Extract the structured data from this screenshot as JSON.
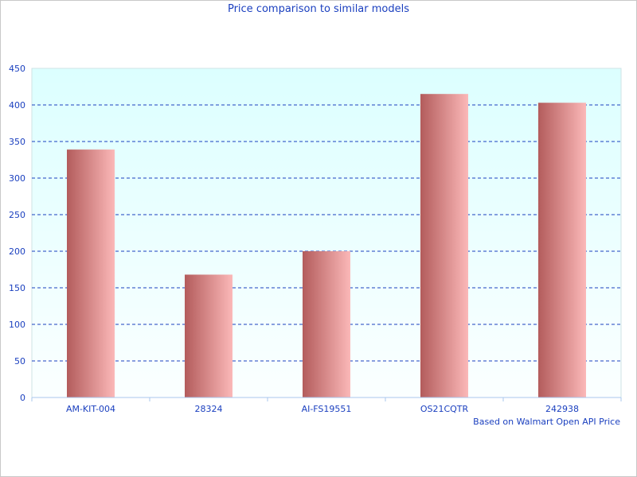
{
  "chart_data": {
    "type": "bar",
    "title": "Price comparison to similar models",
    "categories": [
      "AM-KIT-004",
      "28324",
      "AI-FS19551",
      "OS21CQTR",
      "242938"
    ],
    "values": [
      339,
      168,
      200,
      415,
      403
    ],
    "ylim": [
      0,
      450
    ],
    "yticks": [
      0,
      50,
      100,
      150,
      200,
      250,
      300,
      350,
      400,
      450
    ],
    "grid": true,
    "footnote": "Based on Walmart Open API Price",
    "colors": {
      "bar_dark": "#b35c5c",
      "bar_light": "#fbb8b8",
      "text": "#1a3fbf",
      "grid": "#1a3fbf",
      "plot_bg_top": "#dcffff",
      "plot_bg_bottom": "#fbffff"
    }
  }
}
